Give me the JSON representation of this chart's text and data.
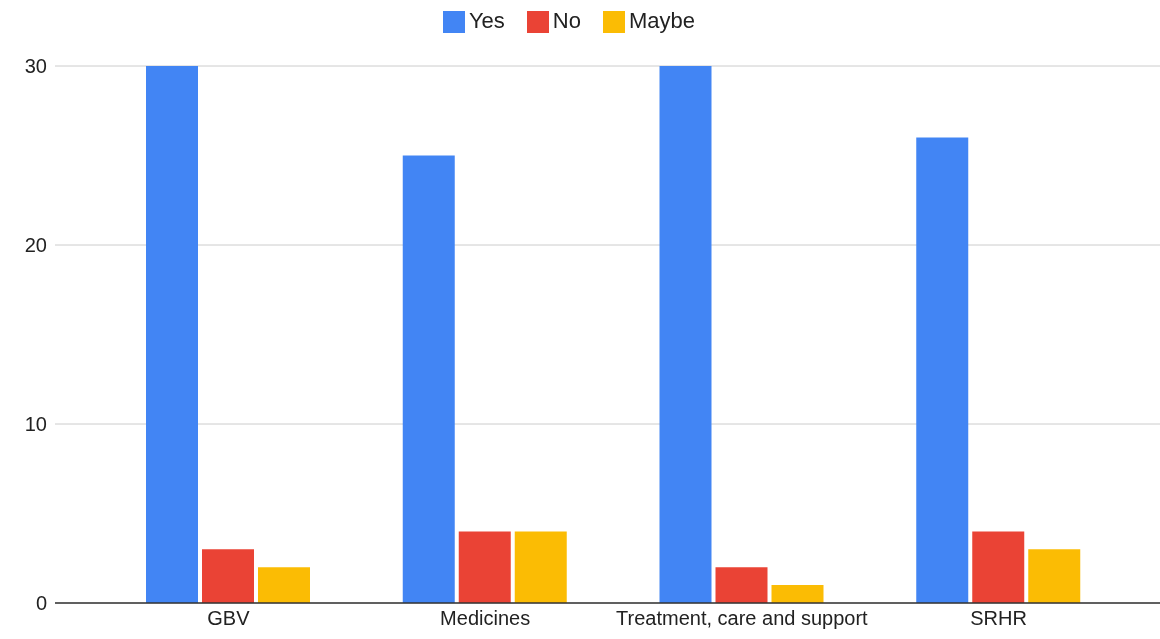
{
  "chart_data": {
    "type": "bar",
    "categories": [
      "GBV",
      "Medicines",
      "Treatment, care and support",
      "SRHR"
    ],
    "series": [
      {
        "name": "Yes",
        "color": "#4285f4",
        "values": [
          30,
          25,
          30,
          26
        ]
      },
      {
        "name": "No",
        "color": "#ea4335",
        "values": [
          3,
          4,
          2,
          4
        ]
      },
      {
        "name": "Maybe",
        "color": "#fbbc04",
        "values": [
          2,
          4,
          1,
          3
        ]
      }
    ],
    "ylim": [
      0,
      30
    ],
    "yticks": [
      0,
      10,
      20,
      30
    ],
    "grid": "y",
    "legend": "top"
  }
}
